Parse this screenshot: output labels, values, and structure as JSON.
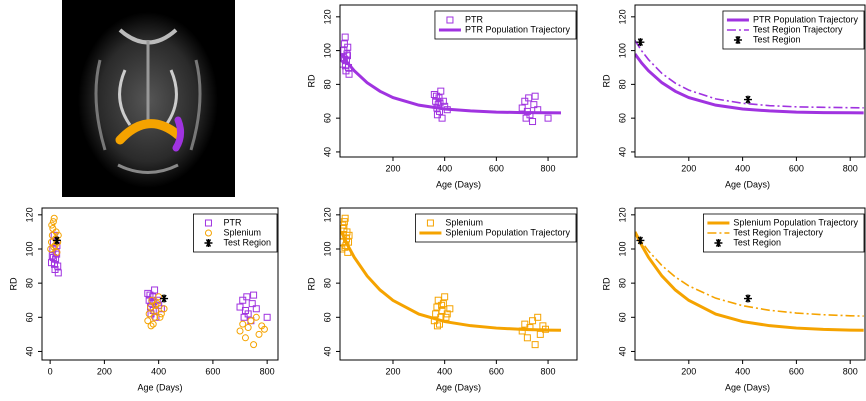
{
  "chart_data": [
    {
      "type": "scatter",
      "xlabel": "Age (Days)",
      "ylabel": "RD",
      "xlim": [
        -5,
        912
      ],
      "ylim": [
        37,
        127
      ],
      "xticks": [
        200,
        400,
        600,
        800
      ],
      "yticks": [
        40,
        60,
        80,
        100,
        120
      ],
      "legend": "upper right",
      "series": [
        {
          "name": "PTR",
          "color": "#a033e0",
          "marker": "square",
          "x": [
            5,
            8,
            10,
            12,
            15,
            18,
            20,
            22,
            25,
            28,
            30,
            12,
            16,
            24,
            360,
            365,
            370,
            372,
            375,
            378,
            380,
            385,
            390,
            395,
            400,
            410,
            368,
            382,
            700,
            710,
            715,
            720,
            725,
            730,
            740,
            745,
            750,
            760,
            800
          ],
          "values": [
            92,
            96,
            100,
            104,
            108,
            88,
            94,
            98,
            102,
            90,
            86,
            95,
            91,
            97,
            74,
            70,
            66,
            62,
            68,
            72,
            64,
            76,
            60,
            70,
            67,
            65,
            73,
            69,
            66,
            70,
            60,
            64,
            72,
            62,
            58,
            68,
            73,
            65,
            60
          ]
        },
        {
          "name": "PTR Population Trajectory",
          "color": "#a033e0",
          "line_style": "solid",
          "line_width": 3,
          "x": [
            0,
            25,
            50,
            100,
            150,
            200,
            300,
            400,
            500,
            600,
            700,
            800,
            850
          ],
          "values": [
            98,
            92.6,
            88.1,
            81,
            75.9,
            72.2,
            67.7,
            65.4,
            64.3,
            63.6,
            63.3,
            63.2,
            63.1
          ]
        }
      ]
    },
    {
      "type": "scatter",
      "xlabel": "Age (Days)",
      "ylabel": "RD",
      "xlim": [
        0,
        855
      ],
      "ylim": [
        37,
        127
      ],
      "xticks": [
        200,
        400,
        600,
        800
      ],
      "yticks": [
        40,
        60,
        80,
        100,
        120
      ],
      "legend": "upper right",
      "series": [
        {
          "name": "PTR Population Trajectory",
          "color": "#a033e0",
          "line_style": "solid",
          "line_width": 3,
          "x": [
            0,
            25,
            50,
            100,
            150,
            200,
            300,
            400,
            500,
            600,
            700,
            800,
            850
          ],
          "values": [
            98,
            92.6,
            88.1,
            81,
            75.9,
            72.2,
            67.7,
            65.4,
            64.3,
            63.6,
            63.3,
            63.2,
            63.1
          ]
        },
        {
          "name": "Test Region Trajectory",
          "color": "#a033e0",
          "line_style": "dashdot",
          "line_width": 1.6,
          "x": [
            0,
            25,
            50,
            100,
            150,
            200,
            300,
            400,
            500,
            600,
            700,
            800,
            850
          ],
          "values": [
            106,
            99.8,
            94.7,
            86.5,
            80.7,
            76.6,
            71.4,
            68.8,
            67.4,
            66.7,
            66.4,
            66.2,
            66.1
          ]
        },
        {
          "name": "Test Region",
          "color": "#000000",
          "marker": "star",
          "x": [
            20,
            420
          ],
          "values": [
            105,
            71
          ]
        }
      ]
    },
    {
      "type": "scatter",
      "xlabel": "Age (Days)",
      "ylabel": "RD",
      "xlim": [
        -30,
        840
      ],
      "ylim": [
        35,
        124
      ],
      "xticks": [
        0,
        200,
        400,
        600,
        800
      ],
      "yticks": [
        40,
        60,
        80,
        100,
        120
      ],
      "legend": "upper right",
      "series": [
        {
          "name": "PTR",
          "color": "#a033e0",
          "marker": "square",
          "x": [
            5,
            8,
            10,
            12,
            15,
            18,
            20,
            22,
            25,
            28,
            30,
            12,
            16,
            24,
            360,
            365,
            370,
            372,
            375,
            378,
            380,
            385,
            390,
            395,
            400,
            410,
            368,
            382,
            700,
            710,
            715,
            720,
            725,
            730,
            740,
            745,
            750,
            760,
            800
          ],
          "values": [
            92,
            96,
            100,
            104,
            108,
            88,
            94,
            98,
            102,
            90,
            86,
            95,
            91,
            97,
            74,
            70,
            66,
            62,
            68,
            72,
            64,
            76,
            60,
            70,
            67,
            65,
            73,
            69,
            66,
            70,
            60,
            64,
            72,
            62,
            58,
            68,
            73,
            65,
            60
          ]
        },
        {
          "name": "Splenium",
          "color": "#f5a300",
          "marker": "circle",
          "x": [
            2,
            5,
            8,
            10,
            12,
            15,
            18,
            20,
            22,
            25,
            28,
            30,
            6,
            14,
            360,
            365,
            370,
            375,
            380,
            385,
            390,
            395,
            400,
            405,
            410,
            420,
            372,
            388,
            700,
            710,
            720,
            730,
            740,
            750,
            760,
            770,
            780,
            790
          ],
          "values": [
            100,
            104,
            108,
            112,
            116,
            118,
            102,
            106,
            110,
            98,
            104,
            108,
            114,
            101,
            58,
            62,
            66,
            70,
            56,
            60,
            64,
            68,
            72,
            60,
            62,
            65,
            55,
            67,
            52,
            56,
            48,
            54,
            58,
            44,
            60,
            50,
            55,
            53
          ]
        },
        {
          "name": "Test Region",
          "color": "#000000",
          "marker": "star",
          "x": [
            25,
            420
          ],
          "values": [
            105,
            71
          ]
        }
      ]
    },
    {
      "type": "scatter",
      "xlabel": "Age (Days)",
      "ylabel": "RD",
      "xlim": [
        -5,
        912
      ],
      "ylim": [
        35,
        124
      ],
      "xticks": [
        200,
        400,
        600,
        800
      ],
      "yticks": [
        40,
        60,
        80,
        100,
        120
      ],
      "legend": "upper right",
      "series": [
        {
          "name": "Splenium",
          "color": "#f5a300",
          "marker": "square",
          "x": [
            2,
            5,
            8,
            10,
            12,
            15,
            18,
            20,
            22,
            25,
            28,
            30,
            6,
            14,
            360,
            365,
            370,
            375,
            380,
            385,
            390,
            395,
            400,
            405,
            410,
            420,
            372,
            388,
            700,
            710,
            720,
            730,
            740,
            750,
            760,
            770,
            780,
            790
          ],
          "values": [
            100,
            104,
            108,
            112,
            116,
            118,
            102,
            106,
            110,
            98,
            104,
            108,
            114,
            101,
            58,
            62,
            66,
            70,
            56,
            60,
            64,
            68,
            72,
            60,
            62,
            65,
            55,
            67,
            52,
            56,
            48,
            54,
            58,
            44,
            60,
            50,
            55,
            53
          ]
        },
        {
          "name": "Splenium Population Trajectory",
          "color": "#f5a300",
          "line_style": "solid",
          "line_width": 3,
          "x": [
            0,
            25,
            50,
            100,
            150,
            200,
            300,
            400,
            500,
            600,
            700,
            800,
            850
          ],
          "values": [
            110,
            102.1,
            95.2,
            84.2,
            76,
            69.9,
            61.9,
            57.5,
            55.1,
            53.7,
            52.9,
            52.5,
            52.4
          ]
        }
      ]
    },
    {
      "type": "scatter",
      "xlabel": "Age (Days)",
      "ylabel": "RD",
      "xlim": [
        0,
        855
      ],
      "ylim": [
        35,
        124
      ],
      "xticks": [
        200,
        400,
        600,
        800
      ],
      "yticks": [
        40,
        60,
        80,
        100,
        120
      ],
      "legend": "upper right",
      "series": [
        {
          "name": "Splenium Population Trajectory",
          "color": "#f5a300",
          "line_style": "solid",
          "line_width": 3,
          "x": [
            0,
            25,
            50,
            100,
            150,
            200,
            300,
            400,
            500,
            600,
            700,
            800,
            850
          ],
          "values": [
            110,
            102.1,
            95.2,
            84.2,
            76,
            69.9,
            61.9,
            57.5,
            55.1,
            53.7,
            52.9,
            52.5,
            52.4
          ]
        },
        {
          "name": "Test Region Trajectory",
          "color": "#f5a300",
          "line_style": "dashdot",
          "line_width": 1.6,
          "x": [
            0,
            25,
            50,
            100,
            150,
            200,
            300,
            400,
            500,
            600,
            700,
            800,
            850
          ],
          "values": [
            110,
            104.1,
            98.9,
            90.3,
            83.6,
            78.4,
            71.2,
            66.8,
            64.1,
            62.5,
            61.5,
            60.9,
            60.7
          ]
        },
        {
          "name": "Test Region",
          "color": "#000000",
          "marker": "star",
          "x": [
            20,
            420
          ],
          "values": [
            105,
            71
          ]
        }
      ]
    }
  ]
}
